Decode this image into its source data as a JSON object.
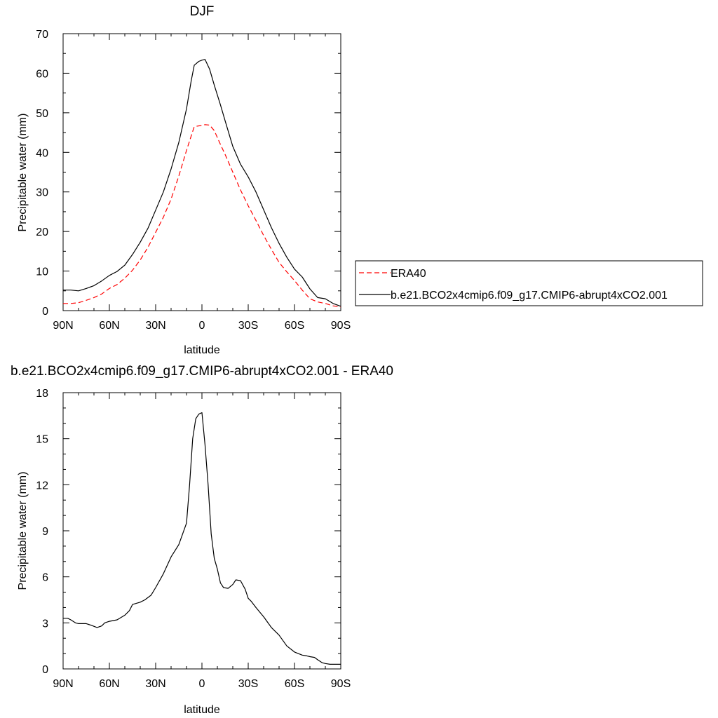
{
  "chart_data": [
    {
      "type": "line",
      "title": "DJF",
      "xlabel": "latitude",
      "ylabel": "Precipitable water (mm)",
      "xlim": [
        -90,
        90
      ],
      "ylim": [
        0,
        70
      ],
      "xticks": [
        {
          "value": -90,
          "label": "90N"
        },
        {
          "value": -60,
          "label": "60N"
        },
        {
          "value": -30,
          "label": "30N"
        },
        {
          "value": 0,
          "label": "0"
        },
        {
          "value": 30,
          "label": "30S"
        },
        {
          "value": 60,
          "label": "60S"
        },
        {
          "value": 90,
          "label": "90S"
        }
      ],
      "yticks": [
        0,
        10,
        20,
        30,
        40,
        50,
        60,
        70
      ],
      "grid": false,
      "legend": "right",
      "series": [
        {
          "name": "ERA40",
          "color": "#ff0000",
          "dash": "dashed",
          "x": [
            -90,
            -85,
            -80,
            -75,
            -70,
            -65,
            -60,
            -55,
            -50,
            -45,
            -40,
            -35,
            -30,
            -25,
            -20,
            -15,
            -10,
            -5,
            -2,
            0,
            2,
            5,
            8,
            12,
            15,
            20,
            25,
            30,
            35,
            40,
            45,
            50,
            55,
            60,
            65,
            70,
            75,
            80,
            85,
            90
          ],
          "values": [
            1.8,
            1.8,
            2.0,
            2.6,
            3.3,
            4.2,
            5.6,
            6.6,
            8.2,
            10.2,
            12.8,
            16.0,
            19.8,
            23.6,
            28.2,
            34.0,
            40.5,
            46.5,
            46.7,
            46.8,
            47.0,
            46.9,
            45.5,
            42.0,
            39.5,
            35.0,
            30.5,
            26.5,
            22.8,
            19.0,
            15.5,
            12.2,
            9.8,
            7.6,
            5.2,
            3.0,
            2.2,
            1.8,
            1.2,
            0.9
          ]
        },
        {
          "name": "b.e21.BCO2x4cmip6.f09_g17.CMIP6-abrupt4xCO2.001",
          "color": "#000000",
          "dash": "solid",
          "x": [
            -90,
            -85,
            -80,
            -75,
            -70,
            -65,
            -60,
            -55,
            -50,
            -45,
            -40,
            -35,
            -30,
            -25,
            -20,
            -15,
            -10,
            -7,
            -5,
            -2,
            0,
            2,
            5,
            8,
            12,
            15,
            20,
            25,
            30,
            35,
            40,
            45,
            50,
            55,
            60,
            65,
            70,
            75,
            80,
            85,
            90
          ],
          "values": [
            5.2,
            5.2,
            5.0,
            5.6,
            6.3,
            7.5,
            8.9,
            9.9,
            11.5,
            14.2,
            17.3,
            20.8,
            25.4,
            30.0,
            35.8,
            42.5,
            51.0,
            58.0,
            62.0,
            63.0,
            63.3,
            63.5,
            61.0,
            57.0,
            52.0,
            48.0,
            41.5,
            37.0,
            33.8,
            30.0,
            25.5,
            21.0,
            17.0,
            13.5,
            10.5,
            8.5,
            5.5,
            3.3,
            3.0,
            1.8,
            1.1
          ]
        }
      ]
    },
    {
      "type": "line",
      "title": "b.e21.BCO2x4cmip6.f09_g17.CMIP6-abrupt4xCO2.001 - ERA40",
      "xlabel": "latitude",
      "ylabel": "Precipitable water (mm)",
      "xlim": [
        -90,
        90
      ],
      "ylim": [
        0,
        18
      ],
      "xticks": [
        {
          "value": -90,
          "label": "90N"
        },
        {
          "value": -60,
          "label": "60N"
        },
        {
          "value": -30,
          "label": "30N"
        },
        {
          "value": 0,
          "label": "0"
        },
        {
          "value": 30,
          "label": "30S"
        },
        {
          "value": 60,
          "label": "60S"
        },
        {
          "value": 90,
          "label": "90S"
        }
      ],
      "yticks": [
        0,
        3,
        6,
        9,
        12,
        15,
        18
      ],
      "grid": false,
      "series": [
        {
          "color": "#000000",
          "dash": "solid",
          "x": [
            -90,
            -87,
            -85,
            -82,
            -80,
            -75,
            -72,
            -68,
            -65,
            -63,
            -60,
            -55,
            -50,
            -47,
            -45,
            -40,
            -37,
            -33,
            -30,
            -25,
            -20,
            -15,
            -10,
            -8,
            -6,
            -4,
            -2,
            0,
            2,
            4,
            6,
            8,
            10,
            12,
            14,
            17,
            20,
            22,
            25,
            28,
            30,
            32,
            35,
            40,
            45,
            50,
            55,
            60,
            65,
            68,
            70,
            73,
            75,
            78,
            80,
            83,
            85,
            88,
            90
          ],
          "values": [
            3.3,
            3.3,
            3.2,
            3.0,
            2.95,
            2.95,
            2.85,
            2.7,
            2.8,
            3.0,
            3.1,
            3.2,
            3.5,
            3.8,
            4.2,
            4.35,
            4.5,
            4.8,
            5.3,
            6.2,
            7.3,
            8.1,
            9.5,
            12.0,
            15.0,
            16.3,
            16.6,
            16.7,
            14.6,
            12.0,
            8.8,
            7.2,
            6.5,
            5.6,
            5.3,
            5.25,
            5.5,
            5.8,
            5.75,
            5.2,
            4.6,
            4.4,
            4.0,
            3.4,
            2.7,
            2.2,
            1.5,
            1.1,
            0.9,
            0.85,
            0.8,
            0.75,
            0.6,
            0.4,
            0.35,
            0.3,
            0.3,
            0.3,
            0.3
          ]
        }
      ]
    }
  ]
}
